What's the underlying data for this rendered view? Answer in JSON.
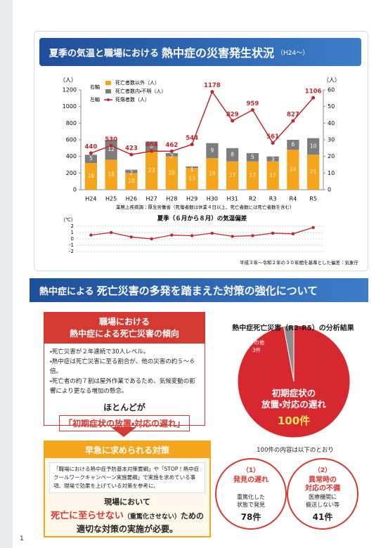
{
  "header": {
    "title": "夏季の気温と職場における",
    "title_emphasis": "熱中症の災害発生状況",
    "title_suffix": "（H24～）"
  },
  "chart_data": [
    {
      "type": "combo",
      "categories": [
        "H24",
        "H25",
        "H26",
        "H27",
        "H28",
        "H29",
        "H30",
        "H31",
        "R2",
        "R3",
        "R4",
        "R5"
      ],
      "y_label": "（人）",
      "y2_label": "（人）",
      "ylim": [
        0,
        1200
      ],
      "yticks": [
        0,
        200,
        400,
        600,
        800,
        1000,
        1200
      ],
      "y2lim": [
        0,
        60
      ],
      "y2ticks": [
        0,
        10,
        20,
        30,
        40,
        50,
        60
      ],
      "y2_legend_label": "右軸",
      "y_legend_label": "左軸",
      "stacked": true,
      "series": [
        {
          "name": "死亡者数以外（人）",
          "type": "bar",
          "axis": "y2",
          "color": "#f4a51c",
          "values": [
            16,
            18,
            10,
            23,
            20,
            13,
            19,
            17,
            17,
            17,
            24,
            21
          ]
        },
        {
          "name": "死亡者数内・不明（人）",
          "type": "bar",
          "axis": "y2",
          "color": "#7d7d7d",
          "values": [
            5,
            12,
            2,
            6,
            2,
            1,
            9,
            8,
            5,
            3,
            6,
            10
          ]
        },
        {
          "name": "死傷者数（人）",
          "type": "line",
          "color": "#c0272d",
          "values": [
            440,
            530,
            423,
            464,
            462,
            544,
            1178,
            829,
            959,
            561,
            827,
            1106
          ]
        }
      ],
      "note": "業務上疾病調：厚生労働省（死傷者数は休業４日以上、死亡者数には死亡者数を含む）"
    },
    {
      "type": "line",
      "title": "夏季（６月から８月）の気温偏差",
      "y_label": "（℃）",
      "ylim": [
        -2,
        2
      ],
      "yticks": [
        2,
        1,
        0,
        -1,
        -2
      ],
      "grid": true,
      "color": "#c0272d",
      "values": [
        0.6,
        1.0,
        0.3,
        0.0,
        0.6,
        0.5,
        0.9,
        0.4,
        0.5,
        0.9,
        0.8,
        1.8
      ],
      "note": "平成３年～令和２年の３０年間を基準とした偏差：気象庁"
    },
    {
      "type": "pie",
      "title": "熱中症死亡災害（R2-R5）の分析結果",
      "categories": [
        "その他",
        "初期症状の\n放置・対応の遅れ"
      ],
      "values": [
        3,
        100
      ],
      "value_labels": [
        "3件",
        "100件"
      ],
      "colors": [
        "#8c8c8c",
        "#d7282f"
      ]
    }
  ],
  "section": {
    "title": "熱中症による",
    "title_emphasis": "死亡災害の多発を踏まえた対策の強化について"
  },
  "trend_box": {
    "title": [
      "職場における",
      "熱中症による死亡災害の傾向"
    ],
    "bullets": [
      "・死亡災害が２年連続で30人レベル。",
      "・熱中症は死亡災害に至る割合が、他の災害の約５～６倍。",
      "・死亡者の約７割は屋外作業であるため、気候変動の影響により更なる増加の懸念。"
    ],
    "lead": "ほとんどが",
    "conclusion": "「初期症状の放置・対応の遅れ」"
  },
  "measures_box": {
    "title": "早急に求められる対策",
    "body": "「職場における熱中症予防基本対策要綱」や「STOP！熱中症 クールワークキャンペーン実施要綱」で実施を求めている事項、現場で効果を上げている対策を参考に、",
    "lead": "現場において",
    "emphasis": "死亡に至らせない",
    "emphasis_note": "（重篤化させない）",
    "emphasis_rest": "ための",
    "last": "適切な対策の実施が必要。"
  },
  "breakdown": {
    "caption": "100件の内容は以下のとおり",
    "items": [
      {
        "number": "（1）",
        "title": "発見の遅れ",
        "description": "重篤化した\n状態で発見",
        "count": "78件"
      },
      {
        "number": "（2）",
        "title": "異常時の\n対応の不備",
        "description": "医療機関に\n搬送しない等",
        "count": "41件"
      }
    ]
  },
  "page_number": "1"
}
